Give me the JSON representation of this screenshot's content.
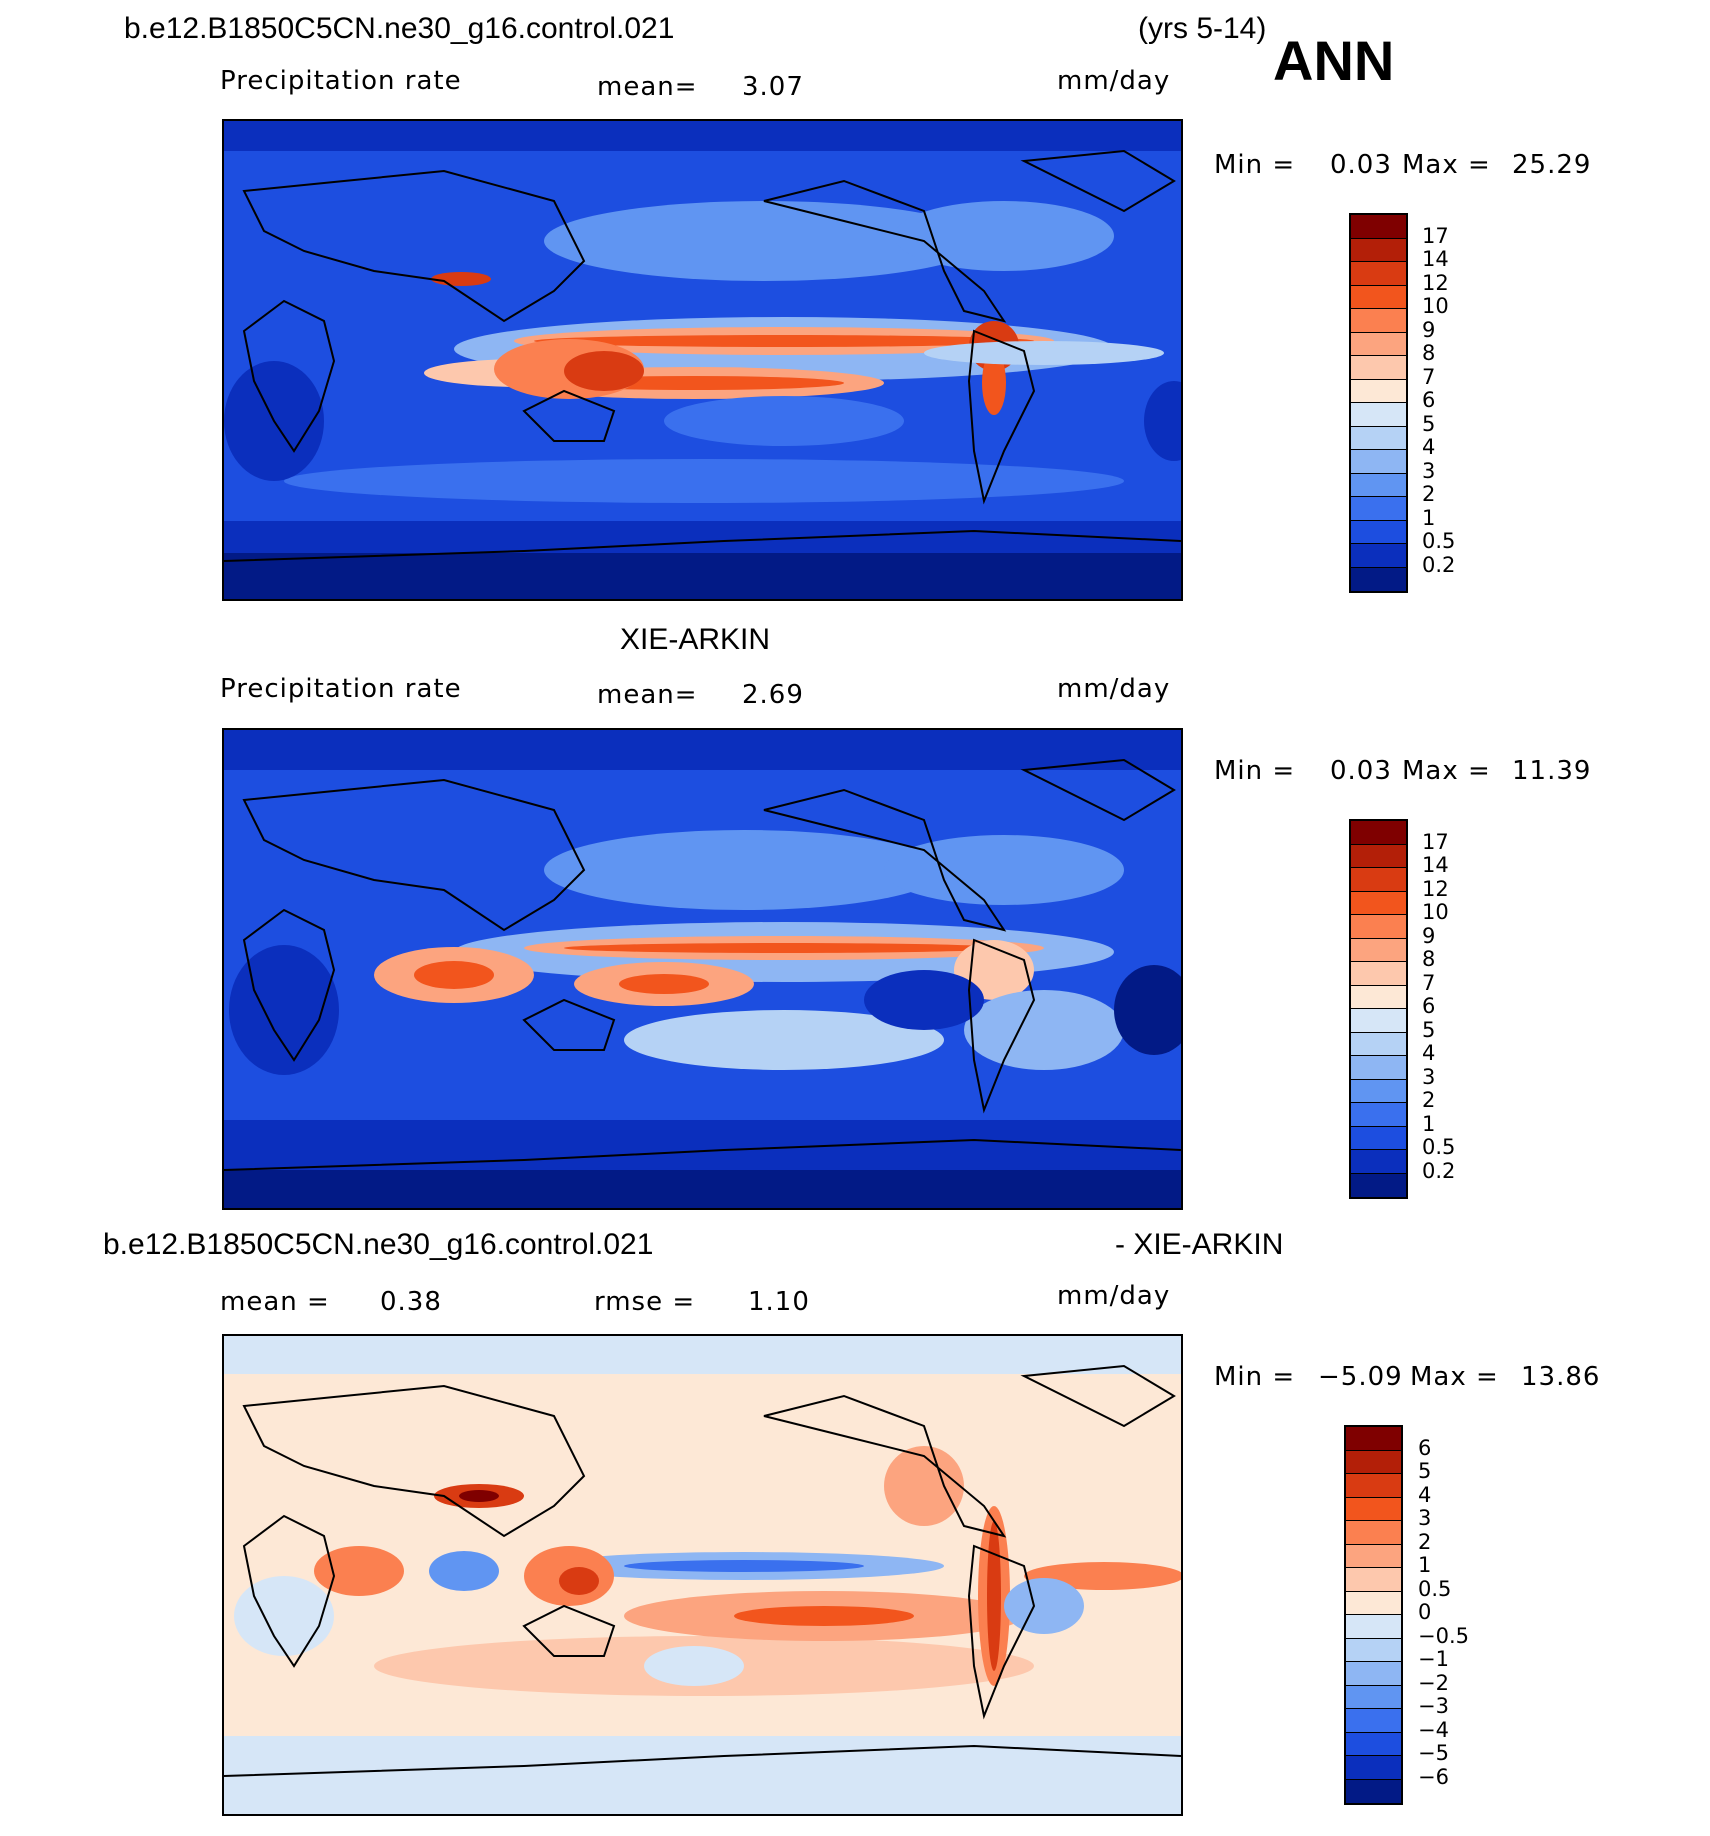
{
  "header": {
    "case_name": "b.e12.B1850C5CN.ne30_g16.control.021",
    "years": "(yrs 5-14)",
    "season": "ANN"
  },
  "panels": [
    {
      "id": "model",
      "title": "",
      "variable": "Precipitation rate",
      "mean_label": "mean=",
      "mean_value": "3.07",
      "units": "mm/day",
      "min_label": "Min =",
      "min_value": "0.03",
      "max_label": "Max =",
      "max_value": "25.29",
      "colorbar_labels": [
        "17",
        "14",
        "12",
        "10",
        "9",
        "8",
        "7",
        "6",
        "5",
        "4",
        "3",
        "2",
        "1",
        "0.5",
        "0.2"
      ],
      "colorbar_colors": [
        "#7f0000",
        "#b31f08",
        "#d93b12",
        "#f2551d",
        "#fb8050",
        "#fca47f",
        "#fdc8ad",
        "#fde8d6",
        "#d6e6f7",
        "#b5d2f5",
        "#8eb6f3",
        "#6095f2",
        "#3a70ee",
        "#1d4ee0",
        "#0b2fbd",
        "#021a86"
      ]
    },
    {
      "id": "obs",
      "title": "XIE-ARKIN",
      "variable": "Precipitation rate",
      "mean_label": "mean=",
      "mean_value": "2.69",
      "units": "mm/day",
      "min_label": "Min =",
      "min_value": "0.03",
      "max_label": "Max =",
      "max_value": "11.39",
      "colorbar_labels": [
        "17",
        "14",
        "12",
        "10",
        "9",
        "8",
        "7",
        "6",
        "5",
        "4",
        "3",
        "2",
        "1",
        "0.5",
        "0.2"
      ],
      "colorbar_colors": [
        "#7f0000",
        "#b31f08",
        "#d93b12",
        "#f2551d",
        "#fb8050",
        "#fca47f",
        "#fdc8ad",
        "#fde8d6",
        "#d6e6f7",
        "#b5d2f5",
        "#8eb6f3",
        "#6095f2",
        "#3a70ee",
        "#1d4ee0",
        "#0b2fbd",
        "#021a86"
      ]
    },
    {
      "id": "diff",
      "title_left": "b.e12.B1850C5CN.ne30_g16.control.021",
      "title_right": "- XIE-ARKIN",
      "mean_label": "mean =",
      "mean_value": "0.38",
      "rmse_label": "rmse =",
      "rmse_value": "1.10",
      "units": "mm/day",
      "min_label": "Min =",
      "min_value": "−5.09",
      "max_label": "Max =",
      "max_value": "13.86",
      "colorbar_labels": [
        "6",
        "5",
        "4",
        "3",
        "2",
        "1",
        "0.5",
        "0",
        "−0.5",
        "−1",
        "−2",
        "−3",
        "−4",
        "−5",
        "−6"
      ],
      "colorbar_colors": [
        "#7f0000",
        "#b31f08",
        "#d93b12",
        "#f2551d",
        "#fb8050",
        "#fca47f",
        "#fdc8ad",
        "#fde8d6",
        "#d6e6f7",
        "#b5d2f5",
        "#8eb6f3",
        "#6095f2",
        "#3a70ee",
        "#1d4ee0",
        "#0b2fbd",
        "#021a86"
      ]
    }
  ]
}
